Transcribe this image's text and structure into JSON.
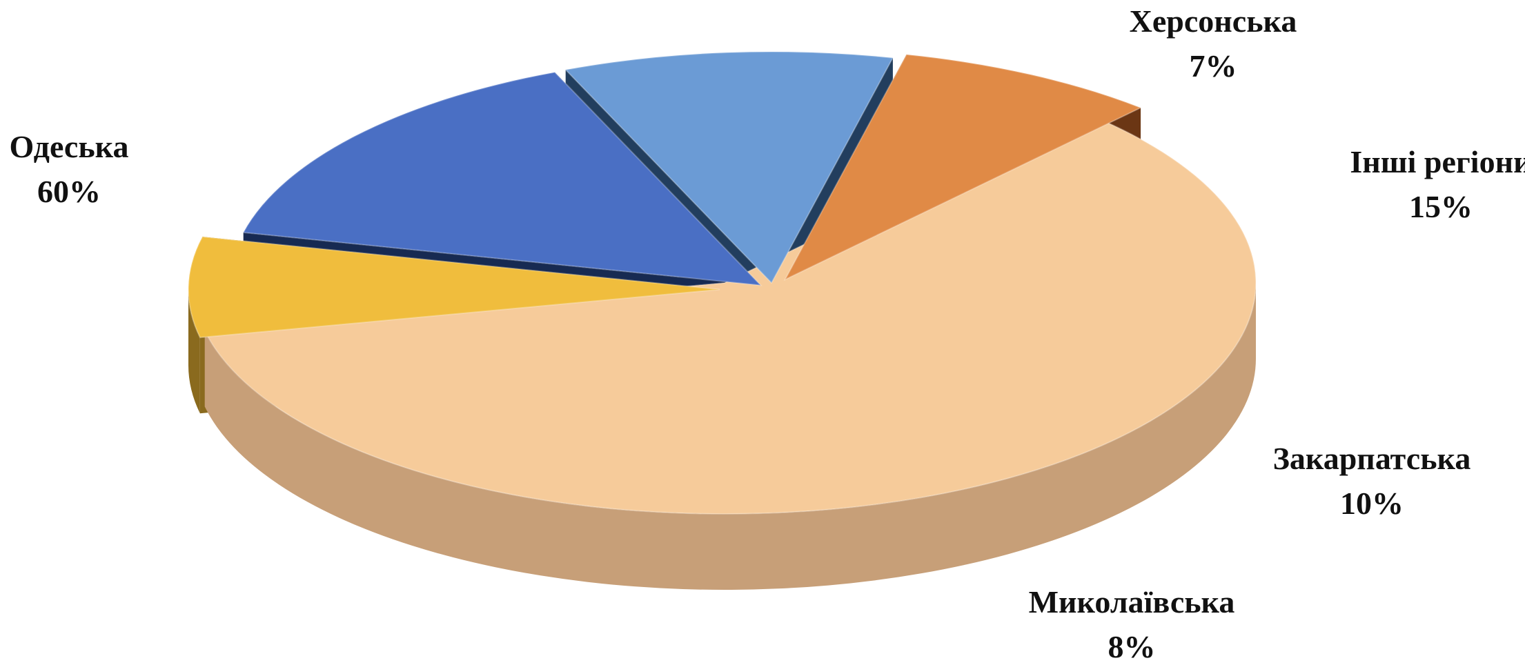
{
  "chart_data": {
    "type": "pie",
    "title": "",
    "legend": "none",
    "slices": [
      {
        "label": "Одеська",
        "value": 60,
        "value_label": "60%",
        "color": "#f6cb9a",
        "side_color": "#c79f78"
      },
      {
        "label": "Херсонська",
        "value": 7,
        "value_label": "7%",
        "color": "#f0bd3d",
        "side_color": "#8a6a1e"
      },
      {
        "label": "Інші регіони",
        "value": 15,
        "value_label": "15%",
        "color": "#4a6fc4",
        "side_color": "#172a52"
      },
      {
        "label": "Закарпатська",
        "value": 10,
        "value_label": "10%",
        "color": "#6b9bd5",
        "side_color": "#223e5e"
      },
      {
        "label": "Миколаївська",
        "value": 8,
        "value_label": "8%",
        "color": "#e08a46",
        "side_color": "#6b3614"
      }
    ]
  }
}
